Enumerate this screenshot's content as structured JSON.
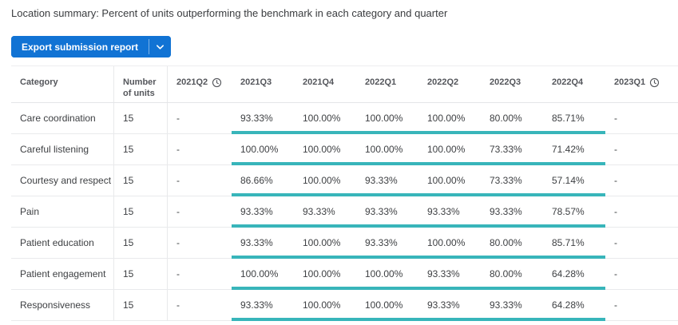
{
  "page": {
    "title": "Location summary: Percent of units outperforming the benchmark in each category and quarter"
  },
  "export_button": {
    "label": "Export submission report",
    "chevron_icon": "chevron-down-icon"
  },
  "table": {
    "columns": [
      {
        "key": "category",
        "label": "Category"
      },
      {
        "key": "units",
        "label": "Number of units"
      },
      {
        "key": "2021q2",
        "label": "2021Q2",
        "icon": "clock-icon"
      },
      {
        "key": "2021q3",
        "label": "2021Q3"
      },
      {
        "key": "2021q4",
        "label": "2021Q4"
      },
      {
        "key": "2022q1",
        "label": "2022Q1"
      },
      {
        "key": "2022q2",
        "label": "2022Q2"
      },
      {
        "key": "2022q3",
        "label": "2022Q3"
      },
      {
        "key": "2022q4",
        "label": "2022Q4"
      },
      {
        "key": "2023q1",
        "label": "2023Q1",
        "icon": "clock-icon"
      }
    ],
    "rows": [
      {
        "category": "Care coordination",
        "units": "15",
        "values": [
          "-",
          "93.33%",
          "100.00%",
          "100.00%",
          "100.00%",
          "80.00%",
          "85.71%",
          "-"
        ]
      },
      {
        "category": "Careful listening",
        "units": "15",
        "values": [
          "-",
          "100.00%",
          "100.00%",
          "100.00%",
          "100.00%",
          "73.33%",
          "71.42%",
          "-"
        ]
      },
      {
        "category": "Courtesy and respect",
        "units": "15",
        "values": [
          "-",
          "86.66%",
          "100.00%",
          "93.33%",
          "100.00%",
          "73.33%",
          "57.14%",
          "-"
        ]
      },
      {
        "category": "Pain",
        "units": "15",
        "values": [
          "-",
          "93.33%",
          "93.33%",
          "93.33%",
          "93.33%",
          "93.33%",
          "78.57%",
          "-"
        ]
      },
      {
        "category": "Patient education",
        "units": "15",
        "values": [
          "-",
          "93.33%",
          "100.00%",
          "93.33%",
          "100.00%",
          "80.00%",
          "85.71%",
          "-"
        ]
      },
      {
        "category": "Patient engagement",
        "units": "15",
        "values": [
          "-",
          "100.00%",
          "100.00%",
          "100.00%",
          "93.33%",
          "80.00%",
          "64.28%",
          "-"
        ]
      },
      {
        "category": "Responsiveness",
        "units": "15",
        "values": [
          "-",
          "93.33%",
          "100.00%",
          "100.00%",
          "93.33%",
          "93.33%",
          "64.28%",
          "-"
        ]
      }
    ]
  },
  "colors": {
    "accent_blue": "#1173d4",
    "benchmark_teal": "#38b5ba"
  }
}
